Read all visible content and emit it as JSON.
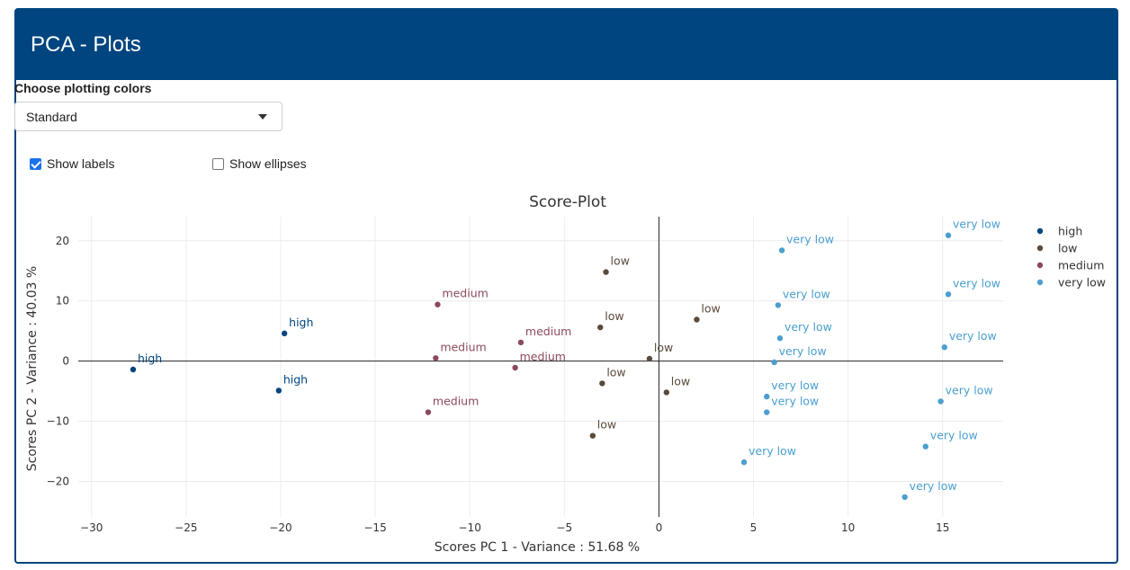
{
  "panel": {
    "title": "PCA - Plots"
  },
  "controls": {
    "colors_label": "Choose plotting colors",
    "colors_value": "Standard",
    "show_labels": {
      "label": "Show labels",
      "checked": true
    },
    "show_ellipses": {
      "label": "Show ellipses",
      "checked": false
    }
  },
  "chart_data": {
    "type": "scatter",
    "title": "Score-Plot",
    "xlabel": "Scores PC 1 - Variance : 51.68 %",
    "ylabel": "Scores PC 2 - Variance : 40.03 %",
    "xlim": [
      -30.7,
      18.2
    ],
    "ylim": [
      -25.9,
      24.0
    ],
    "xticks": [
      -30,
      -25,
      -20,
      -15,
      -10,
      -5,
      0,
      5,
      10,
      15
    ],
    "yticks": [
      -20,
      -10,
      0,
      10,
      20
    ],
    "xtick_labels": [
      "−30",
      "−25",
      "−20",
      "−15",
      "−10",
      "−5",
      "0",
      "5",
      "10",
      "15"
    ],
    "ytick_labels": [
      "−20",
      "−10",
      "0",
      "10",
      "20"
    ],
    "grid": true,
    "zero_lines": true,
    "legend_position": "right",
    "series": [
      {
        "name": "high",
        "color": "#00457f",
        "points": [
          [
            -27.8,
            -1.4
          ],
          [
            -19.8,
            4.6
          ],
          [
            -20.1,
            -4.9
          ]
        ]
      },
      {
        "name": "low",
        "color": "#5a4a3a",
        "points": [
          [
            -2.8,
            14.8
          ],
          [
            -3.1,
            5.6
          ],
          [
            2.0,
            6.9
          ],
          [
            -0.5,
            0.4
          ],
          [
            -3.0,
            -3.7
          ],
          [
            0.4,
            -5.2
          ],
          [
            -3.5,
            -12.4
          ]
        ]
      },
      {
        "name": "medium",
        "color": "#8b4a5c",
        "points": [
          [
            -11.7,
            9.4
          ],
          [
            -7.3,
            3.1
          ],
          [
            -11.8,
            0.5
          ],
          [
            -7.6,
            -1.1
          ],
          [
            -12.2,
            -8.5
          ]
        ]
      },
      {
        "name": "very low",
        "color": "#4a9fcf",
        "points": [
          [
            6.5,
            18.4
          ],
          [
            15.3,
            20.9
          ],
          [
            6.3,
            9.3
          ],
          [
            15.3,
            11.1
          ],
          [
            6.4,
            3.8
          ],
          [
            15.1,
            2.3
          ],
          [
            6.1,
            -0.2
          ],
          [
            5.7,
            -5.9
          ],
          [
            5.7,
            -8.5
          ],
          [
            14.9,
            -6.7
          ],
          [
            14.1,
            -14.2
          ],
          [
            4.5,
            -16.8
          ],
          [
            13.0,
            -22.6
          ]
        ]
      }
    ]
  }
}
